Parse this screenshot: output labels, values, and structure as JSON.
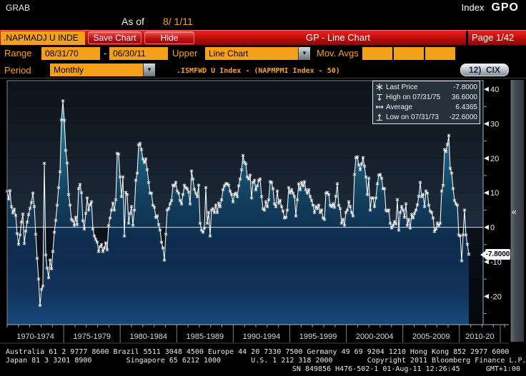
{
  "titlebar": {
    "left": "GRAB",
    "right_label": "Index",
    "right_func": "GPO"
  },
  "asof": {
    "label": "As of",
    "date": "8/ 1/11"
  },
  "redbar": {
    "security": ".NAPMADJ U INDE",
    "save_label": "Save Chart",
    "hide_label": "Hide",
    "title": "GP - Line Chart",
    "page": "Page 1/42"
  },
  "controls": {
    "range_label": "Range",
    "range_start": "08/31/70",
    "range_separator": "-",
    "range_end": "06/30/11",
    "upper_label": "Upper",
    "upper_value": "Line Chart",
    "mov_avgs_label": "Mov. Avgs",
    "mov_avg_values": [
      "",
      "",
      ""
    ],
    "period_label": "Period",
    "period_value": "Monthly",
    "formula": ".ISMFWD U Index - (NAPMPMI Index - 50)",
    "cix_button": "12)  CIX",
    "dropdown_icon": "▼"
  },
  "legend": {
    "rows": [
      {
        "icon": "star-marker",
        "label": "Last Price",
        "value": "-7.8000"
      },
      {
        "icon": "high-marker",
        "label": "High on 07/31/75",
        "value": "36.6000"
      },
      {
        "icon": "average-marker",
        "label": "Average",
        "value": "6.4365"
      },
      {
        "icon": "low-marker",
        "label": "Low on 07/31/73",
        "value": "-22.6000"
      }
    ]
  },
  "last_price_tag": "-7.8000",
  "collapse_chevron": "«",
  "chart_data": {
    "type": "line",
    "series_label": ".ISMFWD U Index - (NAPMPMI Index - 50)",
    "x_start_year": 1970.58,
    "x_end_year": 2011.5,
    "x_tick_labels": [
      "1970-1974",
      "1975-1979",
      "1980-1984",
      "1985-1989",
      "1990-1994",
      "1995-1999",
      "2000-2004",
      "2005-2009",
      "2010-20"
    ],
    "y_ticks": [
      40,
      30,
      20,
      10,
      0,
      -10,
      -20
    ],
    "y_minor_step": 5,
    "ylim": [
      -28.2,
      42.5
    ],
    "grid": "zero-line-only",
    "legend_position": "top-right",
    "stats": {
      "last_price": -7.8,
      "high": {
        "date": "07/31/75",
        "value": 36.6
      },
      "average": 6.4365,
      "low": {
        "date": "07/31/73",
        "value": -22.6
      }
    },
    "values": [
      10.5,
      8.2,
      10.6,
      6.0,
      4.2,
      5.2,
      3.4,
      -1.8,
      -4.9,
      -2.2,
      1.5,
      3.8,
      -4.7,
      -1.1,
      1.5,
      3.7,
      5.5,
      7.2,
      9.9,
      6.0,
      -2.0,
      -9.0,
      -15.0,
      -22.6,
      -18.0,
      -17.0,
      18.5,
      -8.0,
      -11.8,
      -14.6,
      -9.5,
      -12.0,
      -7.0,
      -1.4,
      2.0,
      6.4,
      11.5,
      16.1,
      31.1,
      36.6,
      31.0,
      22.3,
      18.6,
      9.5,
      6.4,
      2.3,
      1.9,
      0.6,
      2.9,
      0.8,
      11.2,
      12.4,
      10.0,
      1.9,
      -0.5,
      4.0,
      8.5,
      5.0,
      6.5,
      7.4,
      -0.5,
      -2.5,
      -3.5,
      -4.3,
      -7.0,
      -5.6,
      -5.0,
      -7.0,
      -6.0,
      -4.5,
      -6.5,
      0.5,
      2.7,
      5.0,
      7.0,
      5.0,
      8.0,
      21.4,
      21.2,
      14.6,
      8.9,
      14.6,
      -2.5,
      10.1,
      9.5,
      1.2,
      4.0,
      6.0,
      0.6,
      5.0,
      13.6,
      15.7,
      23.9,
      24.3,
      22.5,
      19.8,
      18.8,
      19.8,
      16.7,
      13.0,
      9.9,
      9.9,
      6.4,
      5.8,
      2.9,
      3.3,
      0.8,
      -0.8,
      -4.3,
      -6.0,
      -9.5,
      -2.0,
      5.0,
      5.4,
      6.8,
      7.8,
      12.2,
      12.0,
      13.0,
      10.5,
      9.9,
      7.8,
      6.8,
      9.5,
      12.2,
      11.5,
      11.2,
      10.2,
      6.8,
      16.3,
      14.0,
      11.0,
      9.9,
      8.9,
      12.2,
      1.2,
      -0.8,
      -1.4,
      -0.2,
      11.5,
      1.2,
      4.3,
      -2.5,
      5.0,
      5.4,
      4.3,
      6.4,
      4.3,
      7.0,
      6.0,
      8.0,
      10.9,
      12.0,
      12.6,
      12.6,
      12.2,
      10.5,
      9.5,
      7.4,
      9.5,
      9.9,
      8.9,
      12.0,
      14.0,
      16.7,
      20.8,
      18.8,
      18.4,
      14.6,
      14.0,
      15.1,
      8.5,
      13.0,
      13.6,
      10.9,
      12.0,
      13.6,
      14.0,
      8.9,
      5.4,
      5.0,
      7.4,
      6.0,
      8.0,
      13.2,
      13.0,
      11.2,
      6.8,
      6.0,
      10.5,
      7.0,
      7.8,
      6.0,
      4.7,
      2.7,
      2.9,
      5.0,
      11.5,
      10.0,
      10.9,
      9.9,
      8.9,
      3.3,
      8.0,
      12.6,
      10.9,
      13.0,
      12.0,
      13.2,
      10.9,
      9.9,
      10.9,
      8.9,
      7.8,
      6.4,
      4.3,
      6.0,
      5.4,
      6.4,
      4.3,
      5.0,
      2.7,
      2.3,
      9.9,
      10.1,
      9.5,
      6.4,
      6.0,
      6.8,
      5.8,
      9.0,
      12.6,
      6.4,
      5.4,
      1.2,
      2.3,
      0.6,
      4.3,
      5.0,
      7.4,
      6.0,
      4.3,
      3.3,
      15.3,
      20.2,
      20.4,
      18.1,
      16.7,
      18.4,
      20.2,
      17.7,
      14.6,
      9.5,
      14.2,
      5.0,
      8.5,
      8.5,
      6.0,
      8.5,
      12.6,
      15.1,
      15.3,
      14.2,
      11.2,
      11.2,
      5.0,
      4.7,
      5.0,
      1.2,
      -0.2,
      0.6,
      1.6,
      1.0,
      8.0,
      -0.8,
      4.3,
      6.0,
      5.0,
      2.9,
      6.8,
      0.6,
      2.3,
      -0.2,
      3.7,
      2.7,
      4.0,
      5.0,
      6.5,
      9.0,
      13.0,
      8.9,
      9.5,
      6.0,
      10.5,
      9.9,
      6.4,
      4.7,
      4.3,
      2.7,
      -1.2,
      -0.5,
      1.2,
      0.5,
      1.2,
      10.5,
      12.2,
      22.5,
      22.0,
      24.0,
      26.6,
      17.1,
      15.7,
      11.2,
      7.8,
      6.8,
      6.4,
      -2.2,
      -2.5,
      -9.7,
      -2.2,
      5.0,
      -2.2,
      -4.9,
      -7.8
    ]
  },
  "footer": {
    "line1": "Australia 61 2 9777 8600 Brazil 5511 3048 4500 Europe 44 20 7330 7500 Germany 49 69 9204 1210 Hong Kong 852 2977 6000",
    "line2": "Japan 81 3 3201 8900        Singapore 65 6212 1000       U.S. 1 212 318 2000        Copyright 2011 Bloomberg Finance L.P.",
    "line3": "SN 849856 H476-502-1 01-Aug-11 12:26:45      GMT+1:00"
  },
  "colors": {
    "amber": "#f5a01b",
    "red_bar": "#c60f0f",
    "chart_line": "#f0f4f6",
    "fill_teal_top": "#45a0b8",
    "fill_navy_bottom": "#17477a",
    "legend_bg": "#27313c",
    "zero_line": "#d4dade"
  }
}
